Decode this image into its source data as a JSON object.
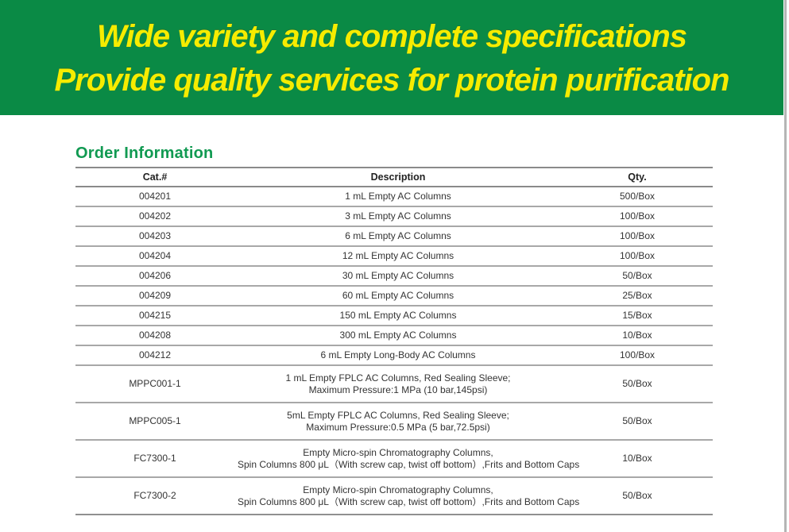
{
  "banner": {
    "line1": "Wide variety and complete specifications",
    "line2": "Provide quality services for protein purification",
    "bg_color": "#0a8a45",
    "text_color": "#f6ec00"
  },
  "section": {
    "title": "Order Information",
    "title_color": "#119a52"
  },
  "table": {
    "headers": [
      "Cat.#",
      "Description",
      "Qty."
    ],
    "rows": [
      {
        "cat": "004201",
        "desc": [
          "1 mL Empty AC Columns"
        ],
        "qty": "500/Box"
      },
      {
        "cat": "004202",
        "desc": [
          "3 mL Empty AC Columns"
        ],
        "qty": "100/Box"
      },
      {
        "cat": "004203",
        "desc": [
          "6 mL Empty AC Columns"
        ],
        "qty": "100/Box"
      },
      {
        "cat": "004204",
        "desc": [
          "12 mL Empty AC Columns"
        ],
        "qty": "100/Box"
      },
      {
        "cat": "004206",
        "desc": [
          "30 mL Empty AC Columns"
        ],
        "qty": "50/Box"
      },
      {
        "cat": "004209",
        "desc": [
          "60 mL Empty AC Columns"
        ],
        "qty": "25/Box"
      },
      {
        "cat": "004215",
        "desc": [
          "150 mL Empty AC Columns"
        ],
        "qty": "15/Box"
      },
      {
        "cat": "004208",
        "desc": [
          "300 mL Empty AC Columns"
        ],
        "qty": "10/Box"
      },
      {
        "cat": "004212",
        "desc": [
          "6 mL  Empty Long-Body AC Columns"
        ],
        "qty": "100/Box"
      },
      {
        "cat": "MPPC001-1",
        "desc": [
          "1 mL Empty FPLC AC Columns, Red Sealing Sleeve;",
          "Maximum Pressure:1 MPa (10 bar,145psi)"
        ],
        "qty": "50/Box"
      },
      {
        "cat": "MPPC005-1",
        "desc": [
          "5mL  Empty FPLC AC Columns, Red Sealing Sleeve;",
          "Maximum Pressure:0.5 MPa (5 bar,72.5psi)"
        ],
        "qty": "50/Box"
      },
      {
        "cat": "FC7300-1",
        "desc": [
          "Empty Micro-spin Chromatography Columns,",
          "Spin Columns 800 μL（With screw cap, twist off bottom）,Frits and Bottom Caps"
        ],
        "qty": "10/Box"
      },
      {
        "cat": "FC7300-2",
        "desc": [
          "Empty Micro-spin Chromatography Columns,",
          "Spin Columns 800 μL（With screw cap, twist off bottom）,Frits and Bottom Caps"
        ],
        "qty": "50/Box"
      }
    ]
  }
}
